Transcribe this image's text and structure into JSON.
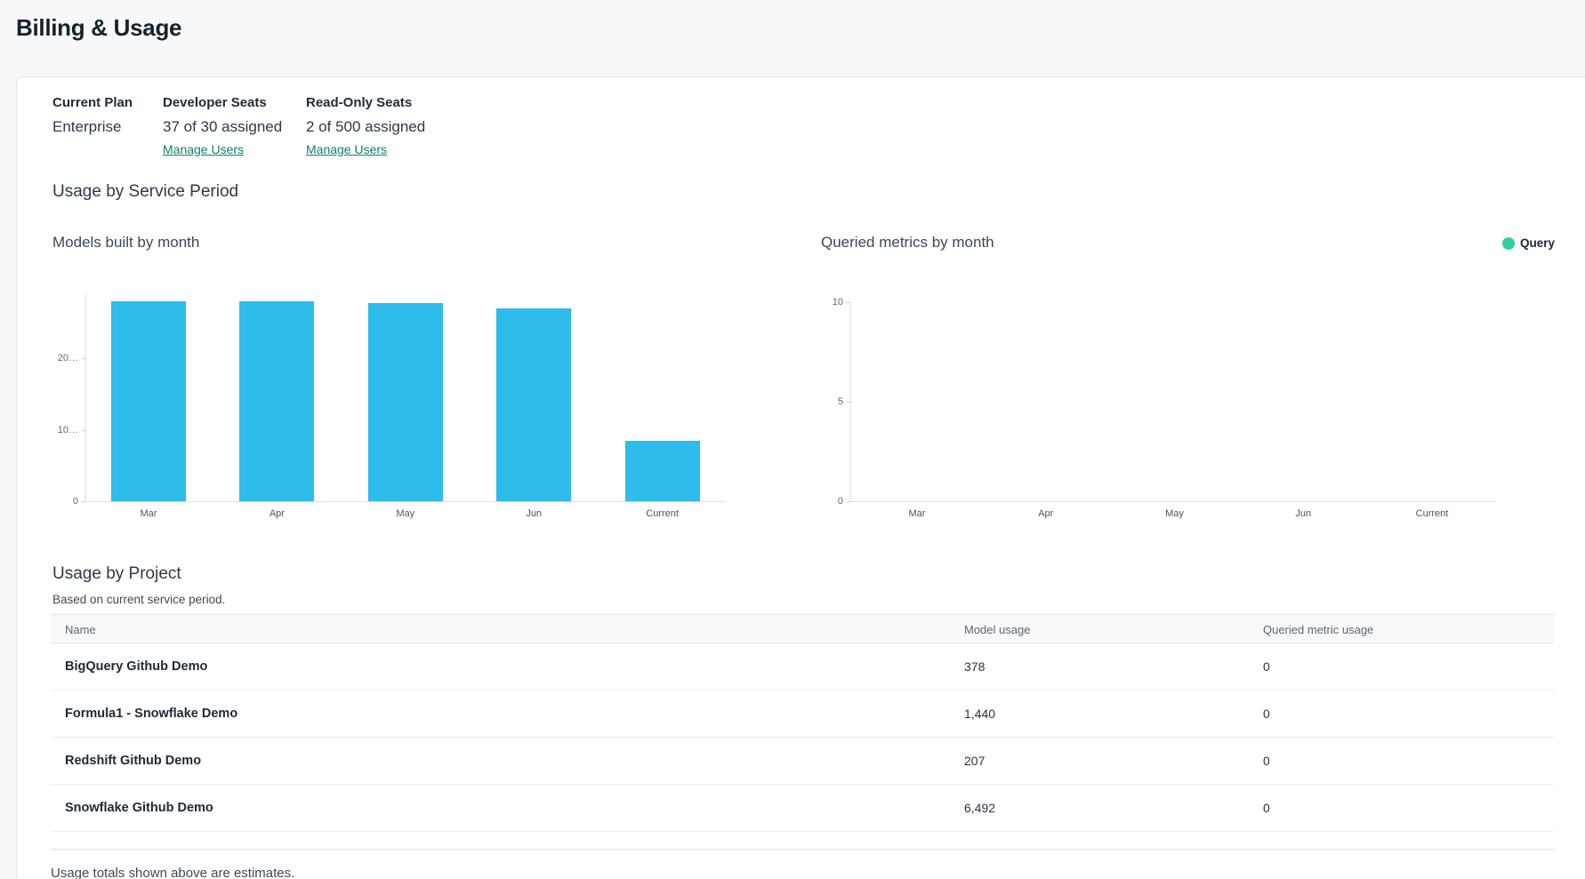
{
  "page": {
    "title": "Billing & Usage"
  },
  "plan_summary": {
    "columns": [
      {
        "label": "Current Plan",
        "value": "Enterprise"
      },
      {
        "label": "Developer Seats",
        "value": "37 of 30 assigned",
        "link": "Manage Users"
      },
      {
        "label": "Read-Only Seats",
        "value": "2 of 500 assigned",
        "link": "Manage Users"
      }
    ]
  },
  "usage_section": {
    "title": "Usage by Service Period"
  },
  "chart_data": [
    {
      "type": "bar",
      "title": "Models built by month",
      "categories": [
        "Mar",
        "Apr",
        "May",
        "Jun",
        "Current"
      ],
      "values": [
        28000,
        27900,
        27700,
        27000,
        8500
      ],
      "yticks": [
        0,
        10000,
        20000
      ],
      "ytick_labels": [
        "0",
        "10…",
        "20…"
      ],
      "ylim": [
        0,
        28900
      ],
      "bar_color": "#2ebcec",
      "grid": false
    },
    {
      "type": "bar",
      "title": "Queried metrics by month",
      "categories": [
        "Mar",
        "Apr",
        "May",
        "Jun",
        "Current"
      ],
      "values": [
        0,
        0,
        0,
        0,
        0
      ],
      "yticks": [
        0,
        5,
        10
      ],
      "ytick_labels": [
        "0",
        "5",
        "10"
      ],
      "ylim": [
        0,
        10
      ],
      "bar_color": "#30cf9d",
      "grid": false,
      "legend": [
        {
          "label": "Query",
          "color": "#30cf9d"
        }
      ],
      "legend_position": "top-right"
    }
  ],
  "project_section": {
    "title": "Usage by Project",
    "subtitle": "Based on current service period.",
    "table": {
      "columns": [
        "Name",
        "Model usage",
        "Queried metric usage"
      ],
      "rows": [
        {
          "name": "BigQuery Github Demo",
          "model_usage": "378",
          "queried_metric_usage": "0"
        },
        {
          "name": "Formula1 - Snowflake Demo",
          "model_usage": "1,440",
          "queried_metric_usage": "0"
        },
        {
          "name": "Redshift Github Demo",
          "model_usage": "207",
          "queried_metric_usage": "0"
        },
        {
          "name": "Snowflake Github Demo",
          "model_usage": "6,492",
          "queried_metric_usage": "0"
        }
      ]
    },
    "footnote": "Usage totals shown above are estimates."
  }
}
